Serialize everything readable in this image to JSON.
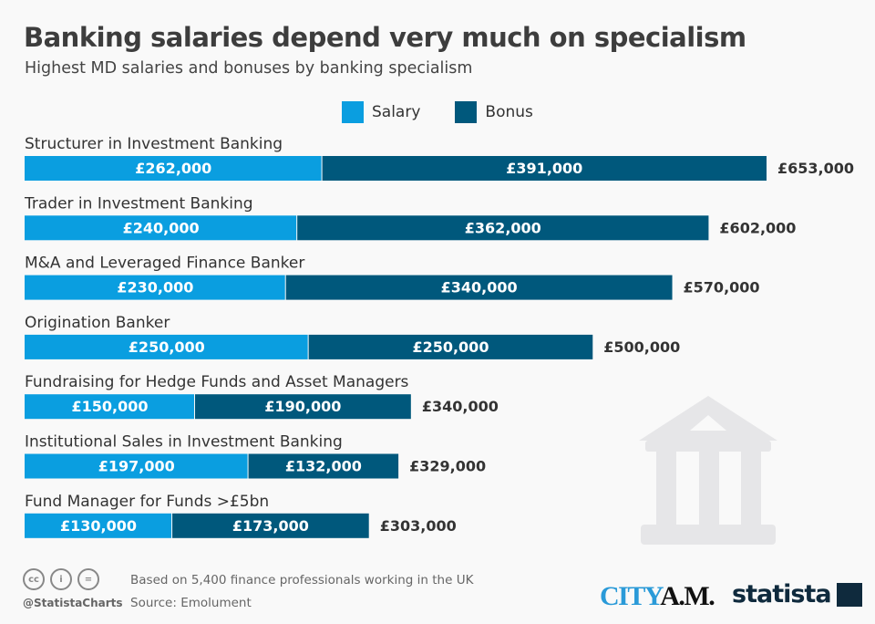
{
  "chart_data": {
    "type": "bar",
    "orientation": "horizontal-stacked",
    "title": "Banking salaries depend very much on specialism",
    "subtitle": "Highest MD salaries and bonuses by banking specialism",
    "categories": [
      "Structurer in Investment Banking",
      "Trader in Investment Banking",
      "M&A and Leveraged Finance Banker",
      "Origination Banker",
      "Fundraising for Hedge Funds and Asset Managers",
      "Institutional Sales in Investment Banking",
      "Fund Manager for Funds >£5bn"
    ],
    "series": [
      {
        "name": "Salary",
        "color": "#0a9ee0",
        "values": [
          262000,
          240000,
          230000,
          250000,
          150000,
          197000,
          130000
        ],
        "labels": [
          "£262,000",
          "£240,000",
          "£230,000",
          "£250,000",
          "£150,000",
          "£197,000",
          "£130,000"
        ]
      },
      {
        "name": "Bonus",
        "color": "#00587c",
        "values": [
          391000,
          362000,
          340000,
          250000,
          190000,
          132000,
          173000
        ],
        "labels": [
          "£391,000",
          "£362,000",
          "£340,000",
          "£250,000",
          "£190,000",
          "£132,000",
          "£173,000"
        ]
      }
    ],
    "totals": [
      "£653,000",
      "£602,000",
      "£570,000",
      "£500,000",
      "£340,000",
      "£329,000",
      "£303,000"
    ],
    "legend_position": "top",
    "grid": false
  },
  "footer": {
    "note": "Based on 5,400 finance professionals working in the UK",
    "source": "Source: Emolument",
    "handle": "@StatistaCharts",
    "logo_city": "CITY A.M.",
    "logo_statista": "statista"
  },
  "icons": [
    "bank-building-icon",
    "creative-commons-icon"
  ]
}
